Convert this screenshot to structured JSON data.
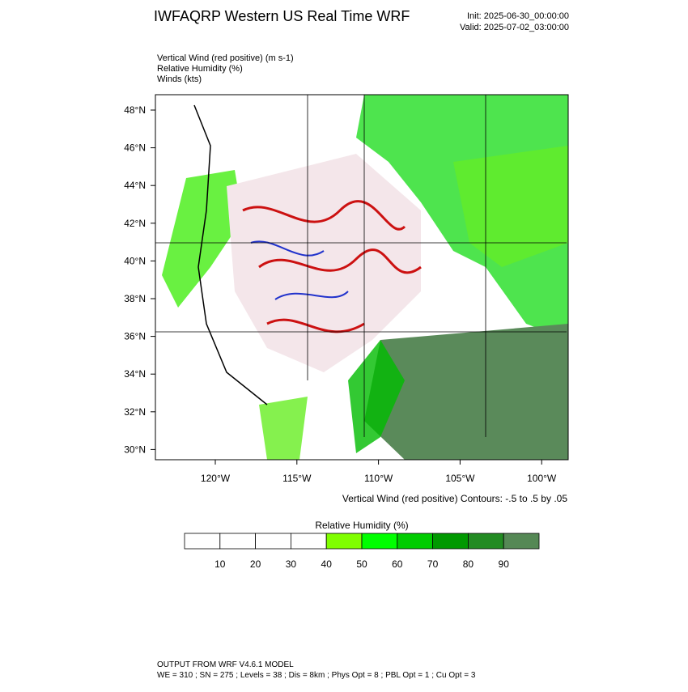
{
  "header": {
    "title": "IWFAQRP Western US Real Time WRF",
    "init": "Init: 2025-06-30_00:00:00",
    "valid": "Valid: 2025-07-02_03:00:00"
  },
  "fields": [
    "Vertical Wind (red positive)   (m s-1)",
    "Relative Humidity   (%)",
    "Winds   (kts)"
  ],
  "map": {
    "lat_labels": [
      "48°N",
      "46°N",
      "44°N",
      "42°N",
      "40°N",
      "38°N",
      "36°N",
      "34°N",
      "32°N",
      "30°N"
    ],
    "lon_labels": [
      "120°W",
      "115°W",
      "110°W",
      "105°W",
      "100°W"
    ],
    "contour_note": "Vertical Wind (red positive) Contours: -.5 to .5 by .05"
  },
  "colorbar": {
    "title": "Relative Humidity  (%)",
    "labels": [
      "10",
      "20",
      "30",
      "40",
      "50",
      "60",
      "70",
      "80",
      "90"
    ],
    "colors": [
      "#ffffff",
      "#ffffff",
      "#ffffff",
      "#ffffff",
      "#80ff00",
      "#00ff00",
      "#00cc00",
      "#009900",
      "#228b22",
      "#558855"
    ]
  },
  "footer": {
    "line1": "OUTPUT FROM WRF V4.6.1 MODEL",
    "line2": "WE = 310 ; SN = 275 ; Levels = 38 ; Dis = 8km ; Phys Opt = 8 ; PBL Opt = 1 ; Cu Opt = 3"
  }
}
